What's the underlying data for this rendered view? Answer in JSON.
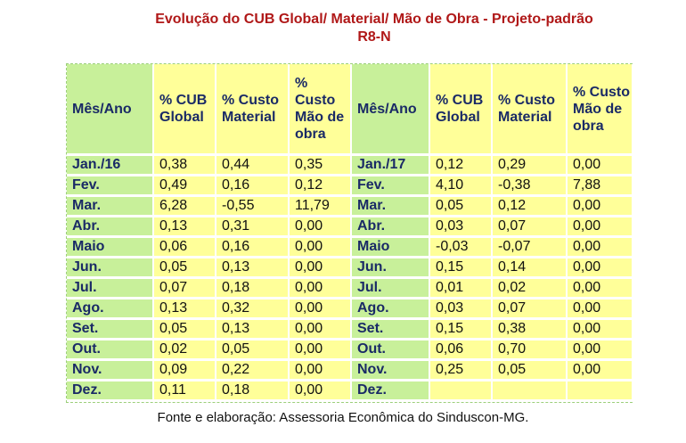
{
  "title_line1": "Evolução do CUB Global/ Material/ Mão de Obra - Projeto-padrão",
  "title_line2": "R8-N",
  "headers": [
    "Mês/Ano",
    "% CUB Global",
    "% Custo Material",
    "% Custo Mão de obra",
    "Mês/Ano",
    "% CUB Global",
    "% Custo Material",
    "% Custo Mão de obra"
  ],
  "rows": [
    [
      "Jan./16",
      "0,38",
      "0,44",
      "0,35",
      "Jan./17",
      "0,12",
      "0,29",
      "0,00"
    ],
    [
      "Fev.",
      "0,49",
      "0,16",
      "0,12",
      "Fev.",
      "4,10",
      "-0,38",
      "7,88"
    ],
    [
      "Mar.",
      "6,28",
      "-0,55",
      "11,79",
      "Mar.",
      "0,05",
      "0,12",
      "0,00"
    ],
    [
      "Abr.",
      "0,13",
      "0,31",
      "0,00",
      "Abr.",
      "0,03",
      "0,07",
      "0,00"
    ],
    [
      "Maio",
      "0,06",
      "0,16",
      "0,00",
      "Maio",
      "-0,03",
      "-0,07",
      "0,00"
    ],
    [
      "Jun.",
      "0,05",
      "0,13",
      "0,00",
      "Jun.",
      "0,15",
      "0,14",
      "0,00"
    ],
    [
      "Jul.",
      "0,07",
      "0,18",
      "0,00",
      "Jul.",
      "0,01",
      "0,02",
      "0,00"
    ],
    [
      "Ago.",
      "0,13",
      "0,32",
      "0,00",
      "Ago.",
      "0,03",
      "0,07",
      "0,00"
    ],
    [
      "Set.",
      "0,05",
      "0,13",
      "0,00",
      "Set.",
      "0,15",
      "0,38",
      "0,00"
    ],
    [
      "Out.",
      "0,02",
      "0,05",
      "0,00",
      "Out.",
      "0,06",
      "0,70",
      "0,00"
    ],
    [
      "Nov.",
      "0,09",
      "0,22",
      "0,00",
      "Nov.",
      "0,25",
      "0,05",
      "0,00"
    ],
    [
      "Dez.",
      "0,11",
      "0,18",
      "0,00",
      "Dez.",
      "",
      "",
      ""
    ]
  ],
  "source": "Fonte e elaboração: Assessoria Econômica do Sinduscon-MG.",
  "colors": {
    "title": "#b01818",
    "month_cell": "#c8f09a",
    "value_cell": "#ffff99"
  }
}
